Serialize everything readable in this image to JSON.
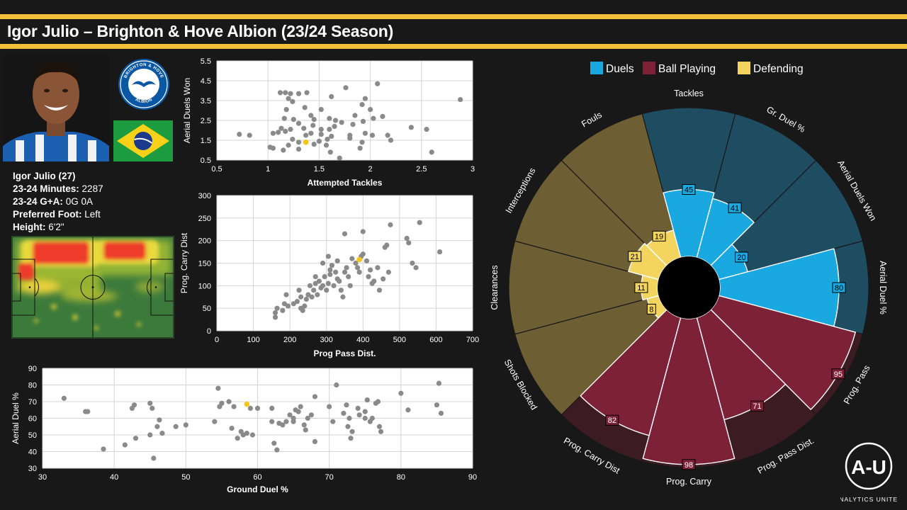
{
  "header": {
    "title": "Igor Julio – Brighton & Hove Albion (23/24 Season)"
  },
  "colors": {
    "accent": "#f3bf3a",
    "duels": "#1aa8e0",
    "ball_playing": "#7c2136",
    "defending": "#f3d45e",
    "highlight": "#f5c518",
    "point": "#8a8a8a"
  },
  "crest": {
    "top_text": "BRIGHTON & HOVE",
    "bottom_text": "ALBION"
  },
  "player": {
    "name_age": "Igor Julio (27)",
    "rows": [
      {
        "label": "23-24 Minutes:",
        "value": "2287"
      },
      {
        "label": "23-24 G+A:",
        "value": "0G 0A"
      },
      {
        "label": "Preferred Foot:",
        "value": "Left"
      },
      {
        "label": "Height:",
        "value": "6'2\""
      }
    ]
  },
  "logo": {
    "mark": "A-U",
    "caption": "ANALYTICS UNITED"
  },
  "chart_data": [
    {
      "type": "scatter",
      "xlabel": "Attempted Tackles",
      "ylabel": "Aerial Duels Won",
      "xlim": [
        0.5,
        3
      ],
      "ylim": [
        0.5,
        5.5
      ],
      "xticks": [
        "0.5",
        "1",
        "1.5",
        "2",
        "2.5",
        "3"
      ],
      "yticks": [
        "0.5",
        "1.5",
        "2.5",
        "3.5",
        "4.5",
        "5.5"
      ],
      "highlight": [
        1.37,
        1.4
      ],
      "points": [
        [
          1.12,
          3.9
        ],
        [
          1.17,
          3.9
        ],
        [
          1.22,
          3.85
        ],
        [
          1.3,
          3.85
        ],
        [
          1.38,
          3.9
        ],
        [
          1.2,
          3.6
        ],
        [
          1.24,
          3.45
        ],
        [
          1.36,
          3.15
        ],
        [
          1.18,
          3.05
        ],
        [
          1.62,
          3.7
        ],
        [
          1.76,
          4.15
        ],
        [
          1.95,
          3.6
        ],
        [
          2.07,
          4.35
        ],
        [
          2.88,
          3.55
        ],
        [
          1.92,
          3.3
        ],
        [
          2.0,
          3.05
        ],
        [
          1.52,
          3.05
        ],
        [
          1.42,
          2.75
        ],
        [
          1.6,
          2.6
        ],
        [
          1.85,
          2.75
        ],
        [
          2.12,
          2.7
        ],
        [
          1.16,
          2.6
        ],
        [
          1.25,
          2.55
        ],
        [
          1.45,
          2.55
        ],
        [
          1.66,
          2.5
        ],
        [
          1.72,
          2.4
        ],
        [
          1.83,
          2.3
        ],
        [
          1.93,
          2.45
        ],
        [
          2.03,
          2.6
        ],
        [
          1.3,
          2.35
        ],
        [
          1.44,
          2.25
        ],
        [
          1.52,
          2.05
        ],
        [
          1.6,
          2.05
        ],
        [
          1.65,
          2.2
        ],
        [
          1.13,
          2.1
        ],
        [
          1.22,
          2.05
        ],
        [
          1.35,
          2.1
        ],
        [
          1.05,
          1.85
        ],
        [
          1.1,
          1.9
        ],
        [
          1.17,
          1.95
        ],
        [
          1.37,
          1.75
        ],
        [
          1.42,
          1.85
        ],
        [
          1.52,
          1.8
        ],
        [
          1.62,
          1.7
        ],
        [
          1.8,
          1.75
        ],
        [
          1.95,
          1.85
        ],
        [
          2.02,
          1.75
        ],
        [
          2.17,
          1.75
        ],
        [
          0.72,
          1.8
        ],
        [
          0.82,
          1.75
        ],
        [
          1.24,
          1.55
        ],
        [
          1.3,
          1.4
        ],
        [
          1.5,
          1.45
        ],
        [
          1.58,
          1.55
        ],
        [
          1.8,
          1.6
        ],
        [
          1.92,
          1.4
        ],
        [
          2.2,
          1.5
        ],
        [
          1.02,
          1.15
        ],
        [
          1.05,
          1.1
        ],
        [
          1.15,
          1.0
        ],
        [
          1.3,
          1.05
        ],
        [
          1.45,
          1.3
        ],
        [
          1.57,
          1.25
        ],
        [
          1.61,
          0.9
        ],
        [
          1.9,
          1.1
        ],
        [
          2.4,
          2.15
        ],
        [
          2.55,
          2.05
        ],
        [
          1.7,
          0.6
        ],
        [
          2.6,
          0.9
        ],
        [
          1.2,
          1.25
        ]
      ]
    },
    {
      "type": "scatter",
      "xlabel": "Prog Pass Dist.",
      "ylabel": "Prog. Carry Dist",
      "xlim": [
        0,
        700
      ],
      "ylim": [
        0,
        300
      ],
      "xticks": [
        "0",
        "100",
        "200",
        "300",
        "400",
        "500",
        "600",
        "700"
      ],
      "yticks": [
        "0",
        "50",
        "100",
        "150",
        "200",
        "250",
        "300"
      ],
      "highlight": [
        390,
        158
      ],
      "points": [
        [
          160,
          30
        ],
        [
          160,
          40
        ],
        [
          165,
          50
        ],
        [
          180,
          45
        ],
        [
          185,
          60
        ],
        [
          195,
          55
        ],
        [
          210,
          60
        ],
        [
          220,
          65
        ],
        [
          225,
          90
        ],
        [
          230,
          50
        ],
        [
          235,
          45
        ],
        [
          240,
          55
        ],
        [
          245,
          70
        ],
        [
          250,
          80
        ],
        [
          255,
          100
        ],
        [
          260,
          75
        ],
        [
          265,
          90
        ],
        [
          270,
          105
        ],
        [
          275,
          80
        ],
        [
          280,
          110
        ],
        [
          285,
          95
        ],
        [
          290,
          100
        ],
        [
          295,
          120
        ],
        [
          300,
          90
        ],
        [
          305,
          105
        ],
        [
          310,
          125
        ],
        [
          315,
          145
        ],
        [
          320,
          100
        ],
        [
          325,
          130
        ],
        [
          330,
          115
        ],
        [
          335,
          110
        ],
        [
          340,
          90
        ],
        [
          345,
          75
        ],
        [
          350,
          130
        ],
        [
          355,
          140
        ],
        [
          360,
          120
        ],
        [
          365,
          100
        ],
        [
          370,
          160
        ],
        [
          380,
          150
        ],
        [
          385,
          140
        ],
        [
          390,
          130
        ],
        [
          395,
          165
        ],
        [
          400,
          170
        ],
        [
          410,
          155
        ],
        [
          415,
          120
        ],
        [
          420,
          135
        ],
        [
          425,
          105
        ],
        [
          430,
          110
        ],
        [
          440,
          140
        ],
        [
          445,
          90
        ],
        [
          455,
          115
        ],
        [
          460,
          185
        ],
        [
          465,
          190
        ],
        [
          470,
          130
        ],
        [
          475,
          235
        ],
        [
          520,
          205
        ],
        [
          525,
          195
        ],
        [
          535,
          150
        ],
        [
          545,
          140
        ],
        [
          555,
          240
        ],
        [
          610,
          175
        ],
        [
          350,
          215
        ],
        [
          400,
          220
        ],
        [
          290,
          150
        ],
        [
          305,
          165
        ],
        [
          330,
          155
        ],
        [
          310,
          135
        ],
        [
          270,
          120
        ],
        [
          190,
          80
        ],
        [
          230,
          75
        ]
      ]
    },
    {
      "type": "scatter",
      "xlabel": "Ground Duel %",
      "ylabel": "Aerial Duel %",
      "xlim": [
        30,
        90
      ],
      "ylim": [
        30,
        90
      ],
      "xticks": [
        "30",
        "40",
        "50",
        "60",
        "70",
        "80",
        "90"
      ],
      "yticks": [
        "30",
        "40",
        "50",
        "60",
        "70",
        "80",
        "90"
      ],
      "highlight": [
        58.5,
        68.5
      ],
      "points": [
        [
          33,
          72
        ],
        [
          36,
          64
        ],
        [
          36.3,
          64
        ],
        [
          38.5,
          41.5
        ],
        [
          41.5,
          44
        ],
        [
          42.5,
          66
        ],
        [
          42.8,
          68
        ],
        [
          43,
          48
        ],
        [
          45,
          69
        ],
        [
          45,
          50
        ],
        [
          45.3,
          66
        ],
        [
          45.5,
          36
        ],
        [
          46,
          55
        ],
        [
          46.3,
          59
        ],
        [
          46.7,
          51
        ],
        [
          48.6,
          55
        ],
        [
          50,
          56
        ],
        [
          54,
          58
        ],
        [
          54.5,
          78
        ],
        [
          54.7,
          67
        ],
        [
          55,
          69
        ],
        [
          56,
          70
        ],
        [
          56.4,
          54
        ],
        [
          56.7,
          67
        ],
        [
          57.2,
          48
        ],
        [
          57.7,
          52
        ],
        [
          58,
          50
        ],
        [
          58.5,
          51
        ],
        [
          59,
          66
        ],
        [
          59.3,
          50
        ],
        [
          60,
          66
        ],
        [
          62,
          58
        ],
        [
          62,
          66
        ],
        [
          62.3,
          45
        ],
        [
          62.7,
          41
        ],
        [
          63,
          57
        ],
        [
          63.5,
          56
        ],
        [
          64,
          58
        ],
        [
          64.5,
          62
        ],
        [
          65,
          58
        ],
        [
          65,
          60
        ],
        [
          65.3,
          65
        ],
        [
          65.7,
          64
        ],
        [
          66,
          67
        ],
        [
          66.5,
          56
        ],
        [
          66.7,
          53
        ],
        [
          67,
          60
        ],
        [
          67.5,
          62
        ],
        [
          68,
          73
        ],
        [
          68,
          46
        ],
        [
          70,
          67
        ],
        [
          70.5,
          58
        ],
        [
          71,
          80
        ],
        [
          72,
          63
        ],
        [
          72.4,
          68
        ],
        [
          72.6,
          55
        ],
        [
          72.8,
          60
        ],
        [
          73,
          48
        ],
        [
          73.2,
          52
        ],
        [
          74,
          66
        ],
        [
          74.2,
          62
        ],
        [
          75,
          64
        ],
        [
          75,
          60
        ],
        [
          75.3,
          71
        ],
        [
          75.7,
          58
        ],
        [
          76,
          60
        ],
        [
          76.5,
          69
        ],
        [
          76.8,
          70
        ],
        [
          77,
          55
        ],
        [
          77.2,
          52
        ],
        [
          80,
          75
        ],
        [
          81,
          65
        ],
        [
          85,
          68
        ],
        [
          85.3,
          81
        ],
        [
          85.6,
          63
        ]
      ]
    },
    {
      "type": "pie",
      "subtype": "polar-bar",
      "legend": [
        "Duels",
        "Ball Playing",
        "Defending"
      ],
      "legend_position": "top",
      "rmax": 100,
      "slices": [
        {
          "label": "Tackles",
          "value": 45,
          "group": "Duels"
        },
        {
          "label": "Gr. Duel %",
          "value": 41,
          "group": "Duels"
        },
        {
          "label": "Aerial Duels Won",
          "value": 20,
          "group": "Duels"
        },
        {
          "label": "Aerial Duel %",
          "value": 80,
          "group": "Duels"
        },
        {
          "label": "Prog. Pass",
          "value": 95,
          "group": "Ball Playing"
        },
        {
          "label": "Prog. Pass Dist.",
          "value": 71,
          "group": "Ball Playing"
        },
        {
          "label": "Prog. Carry",
          "value": 98,
          "group": "Ball Playing"
        },
        {
          "label": "Prog. Carry Dist",
          "value": 82,
          "group": "Ball Playing"
        },
        {
          "label": "Shots Blocked",
          "value": 8,
          "group": "Defending"
        },
        {
          "label": "Clearances",
          "value": 11,
          "group": "Defending"
        },
        {
          "label": "Interceptions",
          "value": 21,
          "group": "Defending"
        },
        {
          "label": "Fouls",
          "value": 19,
          "group": "Defending"
        }
      ]
    }
  ]
}
